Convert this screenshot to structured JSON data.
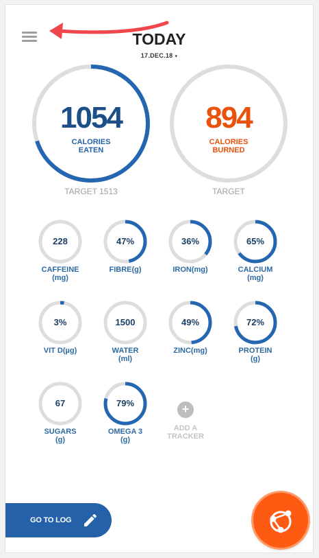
{
  "header": {
    "title": "TODAY",
    "date": "17.DEC.18",
    "date_caret": "▾",
    "menu_icon": "hamburger-menu-icon"
  },
  "calories_eaten": {
    "value": "1054",
    "label_line1": "CALORIES",
    "label_line2": "EATEN",
    "target_label": "TARGET 1513",
    "progress": 0.7,
    "color": "#1c4f87",
    "ring_color": "#2467b0"
  },
  "calories_burned": {
    "value": "894",
    "label_line1": "CALORIES",
    "label_line2": "BURNED",
    "target_label": "TARGET",
    "progress": 0,
    "color": "#e8520c"
  },
  "trackers": [
    {
      "value": "228",
      "name_line1": "CAFFEINE",
      "name_line2": "(mg)",
      "progress": 0
    },
    {
      "value": "47%",
      "name_line1": "FIBRE(g)",
      "name_line2": "",
      "progress": 0.47
    },
    {
      "value": "36%",
      "name_line1": "IRON(mg)",
      "name_line2": "",
      "progress": 0.36
    },
    {
      "value": "65%",
      "name_line1": "CALCIUM",
      "name_line2": "(mg)",
      "progress": 0.65
    },
    {
      "value": "3%",
      "name_line1": "VIT D(µg)",
      "name_line2": "",
      "progress": 0.03
    },
    {
      "value": "1500",
      "name_line1": "WATER",
      "name_line2": "(ml)",
      "progress": 0
    },
    {
      "value": "49%",
      "name_line1": "ZINC(mg)",
      "name_line2": "",
      "progress": 0.49
    },
    {
      "value": "72%",
      "name_line1": "PROTEIN",
      "name_line2": "(g)",
      "progress": 0.72
    },
    {
      "value": "67",
      "name_line1": "SUGARS",
      "name_line2": "(g)",
      "progress": 0
    },
    {
      "value": "79%",
      "name_line1": "OMEGA 3",
      "name_line2": "(g)",
      "progress": 0.79
    }
  ],
  "add_tracker": {
    "plus": "+",
    "line1": "ADD A",
    "line2": "TRACKER"
  },
  "go_to_log": {
    "label": "GO TO LOG",
    "icon": "pencil-icon"
  },
  "fab": {
    "icon": "share-network-icon",
    "color": "#ff5a12"
  },
  "colors": {
    "ring_track": "#dddddd",
    "ring_fill": "#2467b0"
  }
}
